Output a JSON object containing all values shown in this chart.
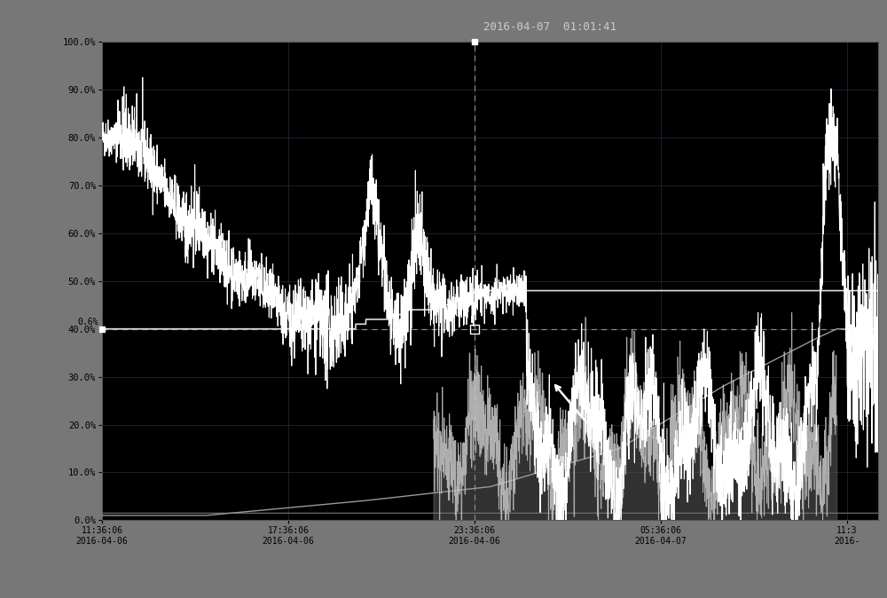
{
  "title": "2016-04-07  01:01:41",
  "background_color": "#000000",
  "outer_bg_color": "#777777",
  "plot_bg_color": "#000000",
  "grid_color": "#2a2a3a",
  "ytick_labels": [
    "0.0%",
    "10.0%",
    "20.0%",
    "30.0%",
    "40.0%",
    "50.0%",
    "60.0%",
    "70.0%",
    "80.0%",
    "90.0%",
    "100.0%"
  ],
  "ytick_positions": [
    0,
    10,
    20,
    30,
    40,
    50,
    60,
    70,
    80,
    90,
    100
  ],
  "xtick_labels": [
    "11:36:06\n2016-04-06",
    "17:36:06\n2016-04-06",
    "23:36:06\n2016-04-06",
    "05:36:06\n2016-04-07",
    "11:3\n2016-"
  ],
  "xtick_positions": [
    0,
    360,
    720,
    1080,
    1440
  ],
  "ylim": [
    0,
    100
  ],
  "xlim": [
    0,
    1500
  ],
  "dashed_vline_x": 720,
  "dashed_hline_y": 40,
  "cursor_x": 720
}
